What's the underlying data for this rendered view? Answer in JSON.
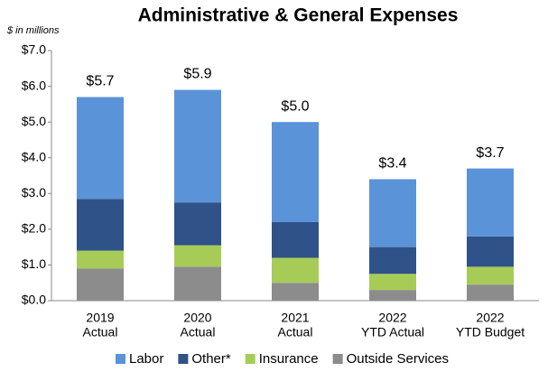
{
  "chart_data": {
    "type": "stacked_bar",
    "title": "Administrative & General Expenses",
    "subtitle": "$ in millions",
    "categories": [
      [
        "2019",
        "Actual"
      ],
      [
        "2020",
        "Actual"
      ],
      [
        "2021",
        "Actual"
      ],
      [
        "2022",
        "YTD Actual"
      ],
      [
        "2022",
        "YTD Budget"
      ]
    ],
    "series": [
      {
        "name": "Outside Services",
        "color": "#8c8c8c",
        "values": [
          0.9,
          0.95,
          0.5,
          0.3,
          0.45
        ]
      },
      {
        "name": "Insurance",
        "color": "#a6cc57",
        "values": [
          0.5,
          0.6,
          0.7,
          0.45,
          0.5
        ]
      },
      {
        "name": "Other*",
        "color": "#2f5288",
        "values": [
          1.45,
          1.2,
          1.0,
          0.75,
          0.85
        ]
      },
      {
        "name": "Labor",
        "color": "#5b93d8",
        "values": [
          2.85,
          3.15,
          2.8,
          1.9,
          1.9
        ]
      }
    ],
    "legend_order": [
      3,
      2,
      1,
      0
    ],
    "totals": {
      "values": [
        5.7,
        5.9,
        5.0,
        3.4,
        3.7
      ],
      "value_labels": [
        "$5.7",
        "$5.9",
        "$5.0",
        "$3.4",
        "$3.7"
      ]
    },
    "ylim": [
      0,
      7
    ],
    "yticks": [
      {
        "value": 0,
        "label": "$0.0"
      },
      {
        "value": 1,
        "label": "$1.0"
      },
      {
        "value": 2,
        "label": "$2.0"
      },
      {
        "value": 3,
        "label": "$3.0"
      },
      {
        "value": 4,
        "label": "$4.0"
      },
      {
        "value": 5,
        "label": "$5.0"
      },
      {
        "value": 6,
        "label": "$6.0"
      },
      {
        "value": 7,
        "label": "$7.0"
      }
    ],
    "grid": false,
    "legend": "bottom"
  }
}
